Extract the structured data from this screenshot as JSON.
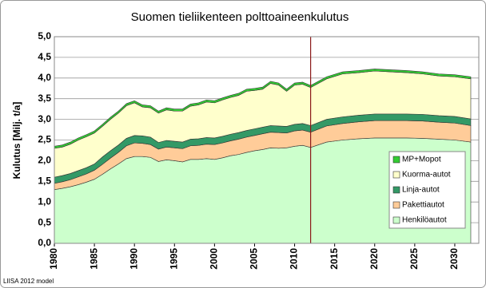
{
  "chart_data": {
    "type": "stacked-area",
    "title": "Suomen tieliikenteen polttoaineenkulutus",
    "y_label": "Kulutus [Milj. t/a]",
    "footnote": "LIISA 2012 model",
    "x": [
      1980,
      1981,
      1982,
      1983,
      1984,
      1985,
      1986,
      1987,
      1988,
      1989,
      1990,
      1991,
      1992,
      1993,
      1994,
      1995,
      1996,
      1997,
      1998,
      1999,
      2000,
      2001,
      2002,
      2003,
      2004,
      2005,
      2006,
      2007,
      2008,
      2009,
      2010,
      2011,
      2012,
      2014,
      2016,
      2018,
      2020,
      2022,
      2024,
      2026,
      2028,
      2030,
      2032
    ],
    "series": [
      {
        "name": "Henkilöautot",
        "color": "#ccffcc",
        "values": [
          1.3,
          1.33,
          1.37,
          1.42,
          1.48,
          1.55,
          1.67,
          1.8,
          1.92,
          2.05,
          2.1,
          2.1,
          2.08,
          1.98,
          2.02,
          2.0,
          1.97,
          2.03,
          2.03,
          2.05,
          2.03,
          2.07,
          2.12,
          2.15,
          2.2,
          2.24,
          2.27,
          2.31,
          2.3,
          2.31,
          2.35,
          2.37,
          2.32,
          2.45,
          2.5,
          2.53,
          2.55,
          2.55,
          2.55,
          2.54,
          2.52,
          2.5,
          2.45
        ]
      },
      {
        "name": "Pakettiautot",
        "color": "#ffcc99",
        "values": [
          0.15,
          0.16,
          0.17,
          0.19,
          0.2,
          0.22,
          0.24,
          0.26,
          0.28,
          0.31,
          0.33,
          0.32,
          0.31,
          0.3,
          0.31,
          0.31,
          0.32,
          0.33,
          0.34,
          0.35,
          0.36,
          0.36,
          0.36,
          0.37,
          0.37,
          0.37,
          0.38,
          0.38,
          0.38,
          0.36,
          0.37,
          0.37,
          0.37,
          0.39,
          0.4,
          0.41,
          0.42,
          0.42,
          0.42,
          0.42,
          0.41,
          0.41,
          0.4
        ]
      },
      {
        "name": "Linja-autot",
        "color": "#339966",
        "values": [
          0.15,
          0.15,
          0.15,
          0.15,
          0.15,
          0.15,
          0.18,
          0.18,
          0.18,
          0.18,
          0.18,
          0.18,
          0.18,
          0.16,
          0.16,
          0.16,
          0.16,
          0.16,
          0.16,
          0.16,
          0.16,
          0.16,
          0.16,
          0.16,
          0.16,
          0.16,
          0.16,
          0.16,
          0.16,
          0.16,
          0.16,
          0.16,
          0.16,
          0.16,
          0.16,
          0.16,
          0.16,
          0.16,
          0.16,
          0.16,
          0.16,
          0.16,
          0.16
        ]
      },
      {
        "name": "Kuorma-autot",
        "color": "#ffffcc",
        "values": [
          0.7,
          0.69,
          0.71,
          0.74,
          0.75,
          0.75,
          0.74,
          0.76,
          0.77,
          0.79,
          0.79,
          0.7,
          0.71,
          0.71,
          0.74,
          0.73,
          0.75,
          0.8,
          0.82,
          0.86,
          0.85,
          0.88,
          0.89,
          0.9,
          0.95,
          0.93,
          0.92,
          1.02,
          0.99,
          0.85,
          0.95,
          0.95,
          0.92,
          0.98,
          1.04,
          1.03,
          1.04,
          1.02,
          1.0,
          0.98,
          0.96,
          0.96,
          0.97
        ]
      },
      {
        "name": "MP+Mopot",
        "color": "#33cc33",
        "values": [
          0.05,
          0.05,
          0.05,
          0.05,
          0.05,
          0.05,
          0.05,
          0.05,
          0.05,
          0.05,
          0.05,
          0.05,
          0.05,
          0.05,
          0.05,
          0.05,
          0.05,
          0.05,
          0.05,
          0.05,
          0.05,
          0.05,
          0.05,
          0.05,
          0.05,
          0.05,
          0.05,
          0.05,
          0.05,
          0.05,
          0.05,
          0.05,
          0.05,
          0.05,
          0.05,
          0.05,
          0.05,
          0.05,
          0.05,
          0.05,
          0.05,
          0.05,
          0.05
        ]
      }
    ],
    "xlim": [
      1980,
      2033
    ],
    "xticks": [
      1980,
      1985,
      1990,
      1995,
      2000,
      2005,
      2010,
      2015,
      2020,
      2025,
      2030
    ],
    "ylim": [
      0,
      5
    ],
    "yticks": [
      {
        "value": 0,
        "label": "0,0"
      },
      {
        "value": 0.5,
        "label": "0,5"
      },
      {
        "value": 1,
        "label": "1,0"
      },
      {
        "value": 1.5,
        "label": "1,5"
      },
      {
        "value": 2,
        "label": "2,0"
      },
      {
        "value": 2.5,
        "label": "2,5"
      },
      {
        "value": 3,
        "label": "3,0"
      },
      {
        "value": 3.5,
        "label": "3,5"
      },
      {
        "value": 4,
        "label": "4,0"
      },
      {
        "value": 4.5,
        "label": "4,5"
      },
      {
        "value": 5,
        "label": "5,0"
      }
    ],
    "vline": 2012,
    "vline_color": "#8b1a1a",
    "grid": true
  }
}
